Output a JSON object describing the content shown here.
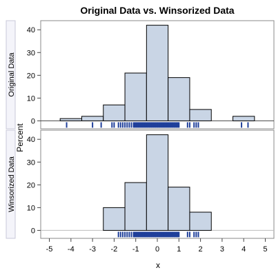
{
  "chart_data": {
    "type": "bar",
    "title": "Original Data vs. Winsorized Data",
    "xlabel": "x",
    "ylabel": "Percent",
    "xlim": [
      -5.4,
      5.4
    ],
    "x_ticks": [
      "-5",
      "-4",
      "-3",
      "-2",
      "-1",
      "0",
      "1",
      "2",
      "3",
      "4",
      "5"
    ],
    "grid": false,
    "bar_fill": "#c9d5e5",
    "rug_color": "#1f3f9a",
    "panels": [
      {
        "label": "Original Data",
        "ylim": [
          -3.5,
          44
        ],
        "y_ticks": [
          "0",
          "10",
          "20",
          "30",
          "40"
        ],
        "bins": [
          {
            "x0": -4.5,
            "x1": -3.5,
            "value": 1
          },
          {
            "x0": -3.5,
            "x1": -2.5,
            "value": 2
          },
          {
            "x0": -2.5,
            "x1": -1.5,
            "value": 7
          },
          {
            "x0": -1.5,
            "x1": -0.5,
            "value": 21
          },
          {
            "x0": -0.5,
            "x1": 0.5,
            "value": 42
          },
          {
            "x0": 0.5,
            "x1": 1.5,
            "value": 19
          },
          {
            "x0": 1.5,
            "x1": 2.5,
            "value": 5
          },
          {
            "x0": 3.5,
            "x1": 4.5,
            "value": 2
          }
        ],
        "rug": [
          -4.2,
          -3.0,
          -2.6,
          -2.1,
          -2.0,
          -1.8,
          -1.7,
          -1.6,
          -1.5,
          -1.4,
          -1.3,
          -1.2,
          -1.1,
          -1.05,
          -1.0,
          -0.95,
          -0.9,
          -0.85,
          -0.8,
          -0.75,
          -0.7,
          -0.65,
          -0.6,
          -0.55,
          -0.5,
          -0.45,
          -0.4,
          -0.35,
          -0.3,
          -0.25,
          -0.2,
          -0.15,
          -0.1,
          -0.05,
          0.0,
          0.05,
          0.1,
          0.15,
          0.2,
          0.25,
          0.3,
          0.35,
          0.4,
          0.45,
          0.5,
          0.55,
          0.6,
          0.65,
          0.7,
          0.75,
          0.8,
          0.85,
          0.9,
          0.95,
          1.0,
          1.4,
          1.5,
          1.7,
          1.8,
          1.9,
          3.9,
          4.2
        ]
      },
      {
        "label": "Winsorized Data",
        "ylim": [
          -3.5,
          44
        ],
        "y_ticks": [
          "0",
          "10",
          "20",
          "30",
          "40"
        ],
        "bins": [
          {
            "x0": -2.5,
            "x1": -1.5,
            "value": 10
          },
          {
            "x0": -1.5,
            "x1": -0.5,
            "value": 21
          },
          {
            "x0": -0.5,
            "x1": 0.5,
            "value": 42
          },
          {
            "x0": 0.5,
            "x1": 1.5,
            "value": 19
          },
          {
            "x0": 1.5,
            "x1": 2.5,
            "value": 8
          }
        ],
        "rug": [
          -1.8,
          -1.7,
          -1.6,
          -1.5,
          -1.4,
          -1.3,
          -1.2,
          -1.1,
          -1.05,
          -1.0,
          -0.95,
          -0.9,
          -0.85,
          -0.8,
          -0.75,
          -0.7,
          -0.65,
          -0.6,
          -0.55,
          -0.5,
          -0.45,
          -0.4,
          -0.35,
          -0.3,
          -0.25,
          -0.2,
          -0.15,
          -0.1,
          -0.05,
          0.0,
          0.05,
          0.1,
          0.15,
          0.2,
          0.25,
          0.3,
          0.35,
          0.4,
          0.45,
          0.5,
          0.55,
          0.6,
          0.65,
          0.7,
          0.75,
          0.8,
          0.85,
          0.9,
          0.95,
          1.0,
          1.4,
          1.5,
          1.7,
          1.8,
          1.9
        ]
      }
    ]
  }
}
